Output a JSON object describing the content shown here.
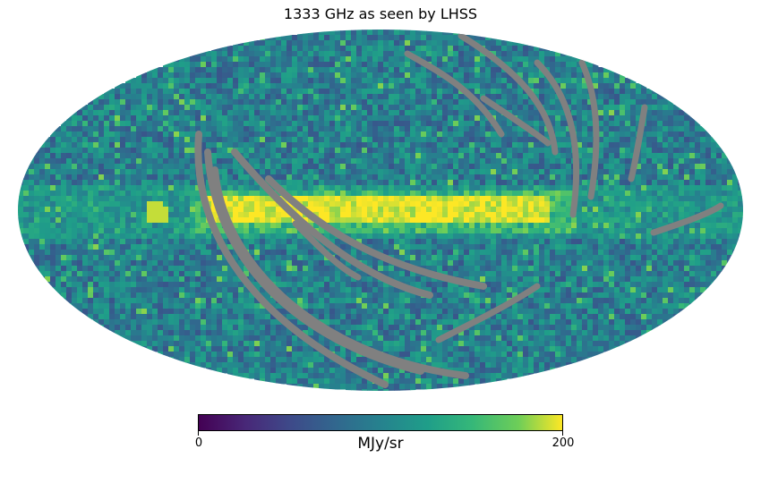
{
  "chart_data": {
    "type": "heatmap",
    "projection": "mollweide",
    "title": "1333 GHz as seen by LHSS",
    "colormap": "viridis",
    "colorbar": {
      "min": 0,
      "max": 200,
      "min_label": "0",
      "max_label": "200",
      "unit": "MJy/sr",
      "placement": "bottom"
    },
    "masked_color": "#808080",
    "features": {
      "galactic_plane_band": "high values (>=200) along the equator",
      "masked_scan_arcs": "grey arcs crossing the map"
    }
  }
}
